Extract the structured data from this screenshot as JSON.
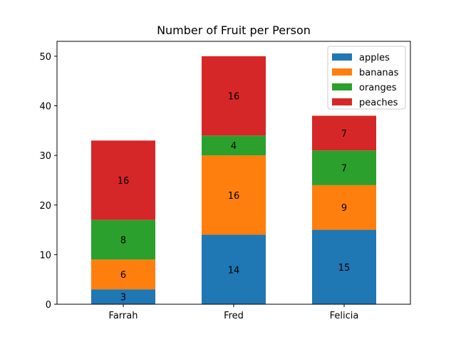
{
  "chart_data": {
    "type": "bar",
    "stacked": true,
    "title": "Number of Fruit per Person",
    "xlabel": "",
    "ylabel": "",
    "categories": [
      "Farrah",
      "Fred",
      "Felicia"
    ],
    "series": [
      {
        "name": "apples",
        "values": [
          3,
          14,
          15
        ],
        "color": "#1f77b4"
      },
      {
        "name": "bananas",
        "values": [
          6,
          16,
          9
        ],
        "color": "#ff7f0e"
      },
      {
        "name": "oranges",
        "values": [
          8,
          4,
          7
        ],
        "color": "#2ca02c"
      },
      {
        "name": "peaches",
        "values": [
          16,
          16,
          7
        ],
        "color": "#d62728"
      }
    ],
    "ylim": [
      0,
      53
    ],
    "yticks": [
      0,
      10,
      20,
      30,
      40,
      50
    ],
    "legend": "top-right",
    "grid": false
  }
}
